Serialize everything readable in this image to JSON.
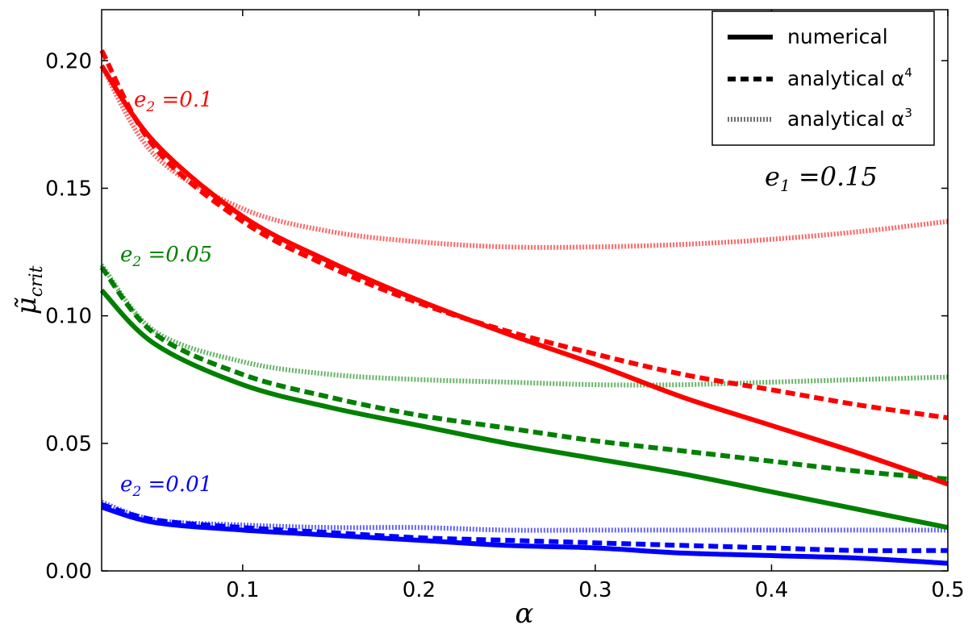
{
  "chart_data": {
    "type": "line",
    "title": "",
    "xlabel": "α",
    "ylabel": "μ̃crit",
    "xlim": [
      0.02,
      0.5
    ],
    "ylim": [
      0.0,
      0.22
    ],
    "xticks": [
      0.1,
      0.2,
      0.3,
      0.4,
      0.5
    ],
    "xtick_labels": [
      "0.1",
      "0.2",
      "0.3",
      "0.4",
      "0.5"
    ],
    "yticks": [
      0.0,
      0.05,
      0.1,
      0.15,
      0.2
    ],
    "ytick_labels": [
      "0.00",
      "0.05",
      "0.10",
      "0.15",
      "0.20"
    ],
    "legend": {
      "position": "top-right",
      "entries": [
        {
          "style": "solid",
          "text": "numerical",
          "sup": ""
        },
        {
          "style": "dashed",
          "text": "analytical α",
          "sup": "4"
        },
        {
          "style": "dotted",
          "text": "analytical α",
          "sup": "3"
        }
      ]
    },
    "annotations": {
      "e1": "e1 = 0.15",
      "red": "e2 = 0.1",
      "green": "e2 = 0.05",
      "blue": "e2 = 0.01"
    },
    "colors": {
      "red": "#ff0000",
      "green": "#008000",
      "blue": "#0000ff"
    },
    "x": [
      0.02,
      0.05,
      0.1,
      0.15,
      0.2,
      0.25,
      0.3,
      0.35,
      0.4,
      0.45,
      0.5
    ],
    "series": [
      {
        "name": "e2 = 0.1 numerical",
        "color": "red",
        "style": "solid",
        "values": [
          0.198,
          0.168,
          0.139,
          0.121,
          0.106,
          0.093,
          0.081,
          0.068,
          0.057,
          0.046,
          0.034
        ]
      },
      {
        "name": "e2 = 0.1 analytical α^4",
        "color": "red",
        "style": "dashed",
        "values": [
          0.204,
          0.166,
          0.137,
          0.119,
          0.105,
          0.094,
          0.085,
          0.077,
          0.071,
          0.065,
          0.06
        ]
      },
      {
        "name": "e2 = 0.1 analytical α^3",
        "color": "red",
        "style": "dotted",
        "values": [
          0.198,
          0.163,
          0.142,
          0.133,
          0.129,
          0.127,
          0.127,
          0.128,
          0.13,
          0.133,
          0.137
        ]
      },
      {
        "name": "e2 = 0.05 numerical",
        "color": "green",
        "style": "solid",
        "values": [
          0.11,
          0.089,
          0.073,
          0.064,
          0.057,
          0.05,
          0.044,
          0.038,
          0.031,
          0.024,
          0.017
        ]
      },
      {
        "name": "e2 = 0.05 analytical α^4",
        "color": "green",
        "style": "dashed",
        "values": [
          0.119,
          0.093,
          0.077,
          0.068,
          0.061,
          0.056,
          0.051,
          0.047,
          0.043,
          0.039,
          0.036
        ]
      },
      {
        "name": "e2 = 0.05 analytical α^3",
        "color": "green",
        "style": "dotted",
        "values": [
          0.12,
          0.094,
          0.082,
          0.077,
          0.075,
          0.074,
          0.073,
          0.073,
          0.074,
          0.075,
          0.076
        ]
      },
      {
        "name": "e2 = 0.01 numerical",
        "color": "blue",
        "style": "solid",
        "values": [
          0.025,
          0.019,
          0.016,
          0.014,
          0.012,
          0.01,
          0.009,
          0.007,
          0.006,
          0.005,
          0.003
        ]
      },
      {
        "name": "e2 = 0.01 analytical α^4",
        "color": "blue",
        "style": "dashed",
        "values": [
          0.026,
          0.02,
          0.017,
          0.015,
          0.013,
          0.012,
          0.011,
          0.01,
          0.009,
          0.008,
          0.008
        ]
      },
      {
        "name": "e2 = 0.01 analytical α^3",
        "color": "blue",
        "style": "dotted",
        "values": [
          0.027,
          0.02,
          0.018,
          0.017,
          0.017,
          0.016,
          0.016,
          0.016,
          0.016,
          0.016,
          0.016
        ]
      }
    ]
  }
}
